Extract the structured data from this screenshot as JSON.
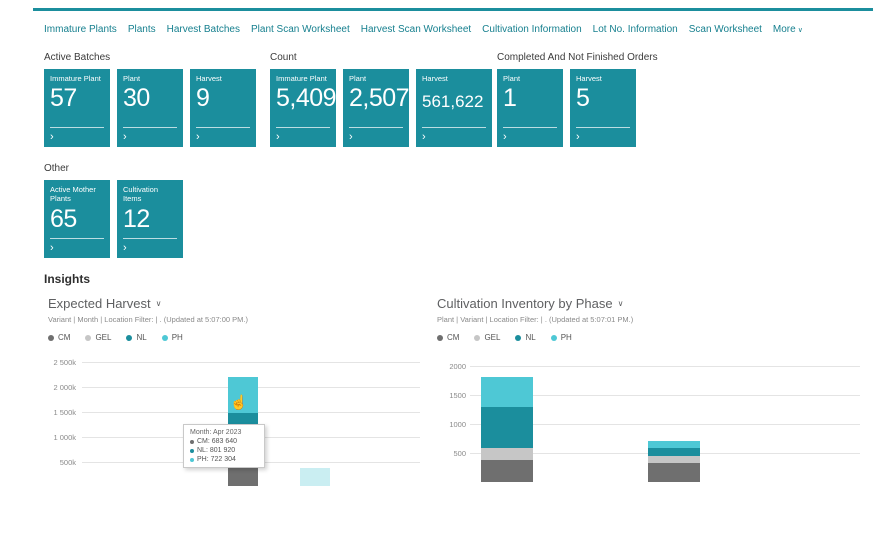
{
  "theme": {
    "teal": "#1b8e9d",
    "cyan": "#4ec8d5",
    "link": "#17808f",
    "grid": "#e4e4e4"
  },
  "series_colors": {
    "CM": "#6f6f6f",
    "GEL": "#c6c6c6",
    "NL": "#1b8e9d",
    "PH": "#4ec8d5"
  },
  "icons": {
    "chevron_down": "∨",
    "chevron_right": "›",
    "hand_cursor": "☝"
  },
  "nav": {
    "items": [
      "Immature Plants",
      "Plants",
      "Harvest Batches",
      "Plant Scan Worksheet",
      "Harvest Scan Worksheet",
      "Cultivation Information",
      "Lot No. Information",
      "Scan Worksheet"
    ],
    "more_label": "More"
  },
  "groups": [
    {
      "title": "Active Batches",
      "tiles": [
        {
          "label": "Immature Plant",
          "value": "57"
        },
        {
          "label": "Plant",
          "value": "30"
        },
        {
          "label": "Harvest",
          "value": "9"
        }
      ]
    },
    {
      "title": "Count",
      "tiles": [
        {
          "label": "Immature Plant",
          "value": "5,409"
        },
        {
          "label": "Plant",
          "value": "2,507"
        },
        {
          "label": "Harvest",
          "value": "561,622"
        }
      ]
    },
    {
      "title": "Completed And Not Finished Orders",
      "tiles": [
        {
          "label": "Plant",
          "value": "1"
        },
        {
          "label": "Harvest",
          "value": "5"
        }
      ]
    },
    {
      "title": "Other",
      "tiles": [
        {
          "label": "Active Mother Plants",
          "value": "65"
        },
        {
          "label": "Cultivation Items",
          "value": "12"
        }
      ]
    }
  ],
  "insights_title": "Insights",
  "chart_data": [
    {
      "type": "bar",
      "stacked": true,
      "title": "Expected Harvest",
      "subtitle": "Variant | Month | Location Filter: | . (Updated at  5:07:00 PM.)",
      "legend": [
        "CM",
        "GEL",
        "NL",
        "PH"
      ],
      "ytick_labels": [
        "2 500k",
        "2 000k",
        "1 500k",
        "1 000k",
        "500k"
      ],
      "ymax": 2500000,
      "ystep": 500000,
      "grid": true,
      "legend_position": "top",
      "categories": [
        "Apr 2023",
        ""
      ],
      "hovered_category": 0,
      "series": [
        {
          "name": "CM",
          "values": [
            683640,
            0
          ]
        },
        {
          "name": "GEL",
          "values": [
            0,
            0
          ]
        },
        {
          "name": "NL",
          "values": [
            801920,
            0
          ]
        },
        {
          "name": "PH",
          "values": [
            722304,
            380000
          ]
        }
      ],
      "tooltip": {
        "title": "Month: Apr 2023",
        "rows": [
          {
            "series": "CM",
            "text": "CM: 683 640"
          },
          {
            "series": "NL",
            "text": "NL: 801 920"
          },
          {
            "series": "PH",
            "text": "PH: 722 304"
          }
        ]
      }
    },
    {
      "type": "bar",
      "stacked": true,
      "title": "Cultivation Inventory by Phase",
      "subtitle": "Plant | Variant | Location Filter: | . (Updated at  5:07:01 PM.)",
      "legend": [
        "CM",
        "GEL",
        "NL",
        "PH"
      ],
      "ytick_labels": [
        "2000",
        "1500",
        "1000",
        "500"
      ],
      "ymax": 2000,
      "ystep": 500,
      "grid": true,
      "legend_position": "top",
      "categories": [
        "",
        ""
      ],
      "series": [
        {
          "name": "CM",
          "values": [
            380,
            330
          ]
        },
        {
          "name": "GEL",
          "values": [
            200,
            120
          ]
        },
        {
          "name": "NL",
          "values": [
            710,
            140
          ]
        },
        {
          "name": "PH",
          "values": [
            520,
            120
          ]
        }
      ]
    }
  ]
}
